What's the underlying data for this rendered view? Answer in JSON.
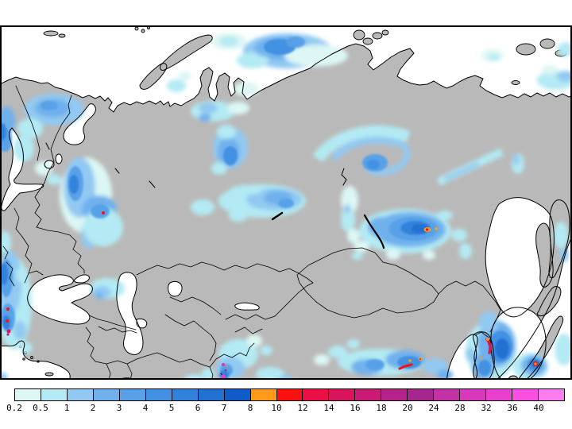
{
  "map": {
    "land_color": "#b9b9b9",
    "ocean_color": "#ffffff",
    "border_color": "#000000",
    "frame_color": "#000000"
  },
  "legend": {
    "tick_labels": [
      "0.2",
      "0.5",
      "1",
      "2",
      "3",
      "4",
      "5",
      "6",
      "7",
      "8",
      "10",
      "12",
      "14",
      "16",
      "18",
      "20",
      "24",
      "28",
      "32",
      "36",
      "40"
    ],
    "segment_colors": [
      "#dcf7f4",
      "#b3eaf3",
      "#92c9f2",
      "#70b1ed",
      "#58a1e8",
      "#4291e2",
      "#3081da",
      "#2071d2",
      "#0f5bca",
      "#ff9a1b",
      "#fa1010",
      "#ea1045",
      "#d9145f",
      "#c91b76",
      "#b6228b",
      "#a5268e",
      "#c231a5",
      "#d938ba",
      "#ea40ce",
      "#f950e2",
      "#fb7df0"
    ]
  }
}
